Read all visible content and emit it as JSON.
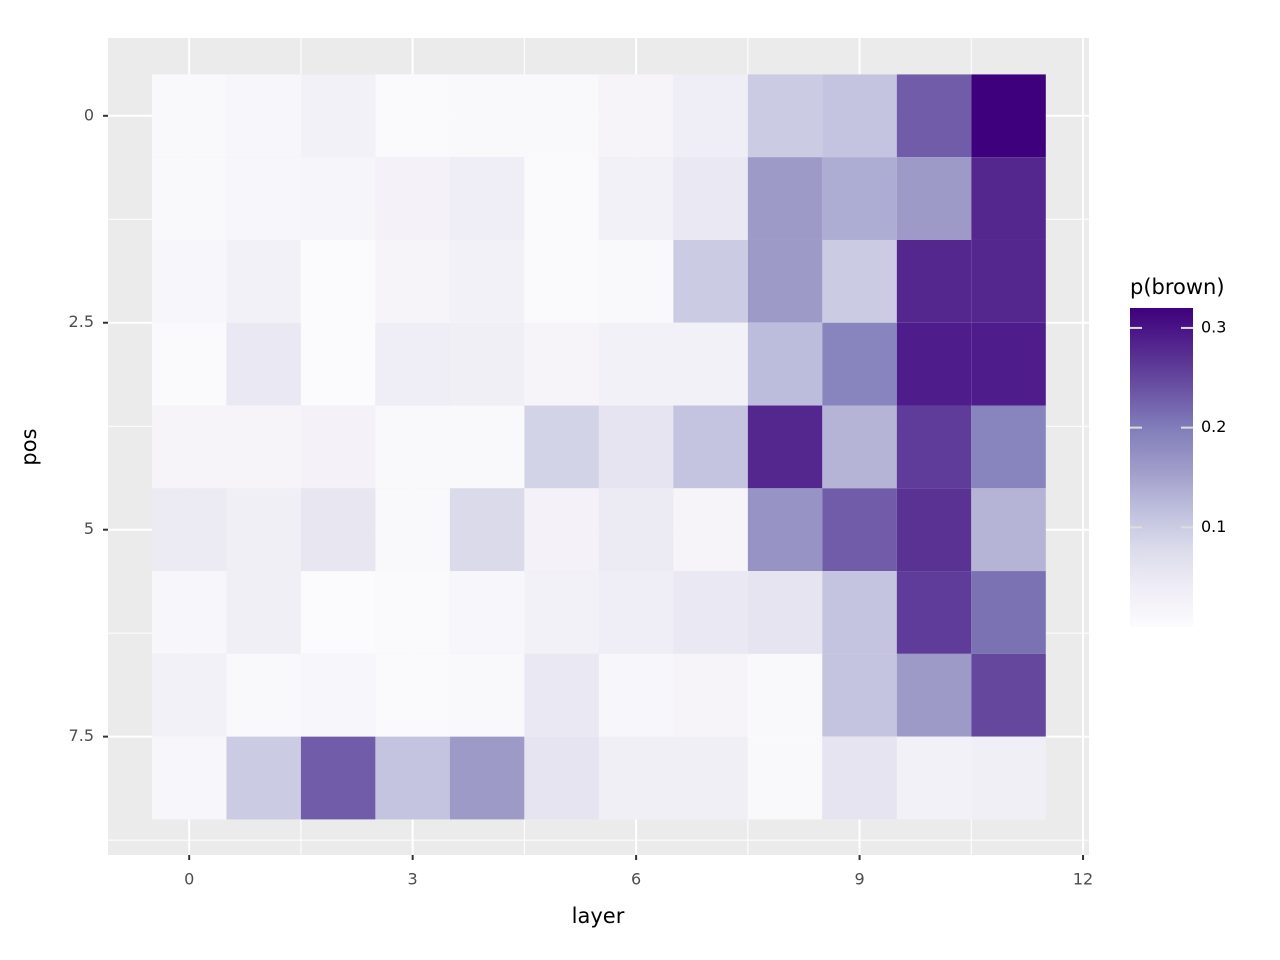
{
  "chart_data": {
    "type": "heatmap",
    "x_label": "layer",
    "y_label": "pos",
    "legend_title": "p(brown)",
    "x": [
      0,
      1,
      2,
      3,
      4,
      5,
      6,
      7,
      8,
      9,
      10,
      11
    ],
    "y": [
      0,
      1,
      2,
      3,
      4,
      5,
      6,
      7,
      8
    ],
    "z": [
      [
        0.01,
        0.015,
        0.03,
        0.005,
        0.008,
        0.01,
        0.02,
        0.04,
        0.1,
        0.11,
        0.23,
        0.32
      ],
      [
        0.01,
        0.015,
        0.018,
        0.025,
        0.04,
        0.005,
        0.03,
        0.05,
        0.16,
        0.14,
        0.16,
        0.28
      ],
      [
        0.015,
        0.03,
        0.003,
        0.02,
        0.03,
        0.005,
        0.008,
        0.1,
        0.16,
        0.1,
        0.28,
        0.28
      ],
      [
        0.005,
        0.05,
        0.003,
        0.04,
        0.035,
        0.02,
        0.03,
        0.03,
        0.12,
        0.19,
        0.29,
        0.29
      ],
      [
        0.02,
        0.02,
        0.025,
        0.01,
        0.01,
        0.09,
        0.06,
        0.11,
        0.28,
        0.13,
        0.26,
        0.19
      ],
      [
        0.045,
        0.035,
        0.055,
        0.01,
        0.08,
        0.025,
        0.045,
        0.02,
        0.17,
        0.23,
        0.27,
        0.13
      ],
      [
        0.015,
        0.035,
        0.003,
        0.005,
        0.015,
        0.03,
        0.04,
        0.05,
        0.06,
        0.11,
        0.26,
        0.21
      ],
      [
        0.03,
        0.01,
        0.015,
        0.005,
        0.01,
        0.05,
        0.015,
        0.02,
        0.01,
        0.11,
        0.16,
        0.25
      ],
      [
        0.015,
        0.1,
        0.23,
        0.11,
        0.16,
        0.06,
        0.035,
        0.035,
        0.01,
        0.06,
        0.03,
        0.035
      ]
    ],
    "xlim": [
      -1.09,
      12.08
    ],
    "xticks": [
      0,
      3,
      6,
      9,
      12
    ],
    "ylim": [
      -0.94,
      8.93
    ],
    "yticks": [
      0,
      2.5,
      5,
      7.5
    ],
    "y_reversed": true,
    "zlim": [
      0,
      0.32
    ],
    "zticks": [
      0.1,
      0.2,
      0.3
    ],
    "colors": [
      "#fcfbfd",
      "#efedf5",
      "#dadaeb",
      "#bcbddc",
      "#9e9ac8",
      "#807dba",
      "#6a51a3",
      "#54278f",
      "#3f007d"
    ],
    "grid": true
  }
}
